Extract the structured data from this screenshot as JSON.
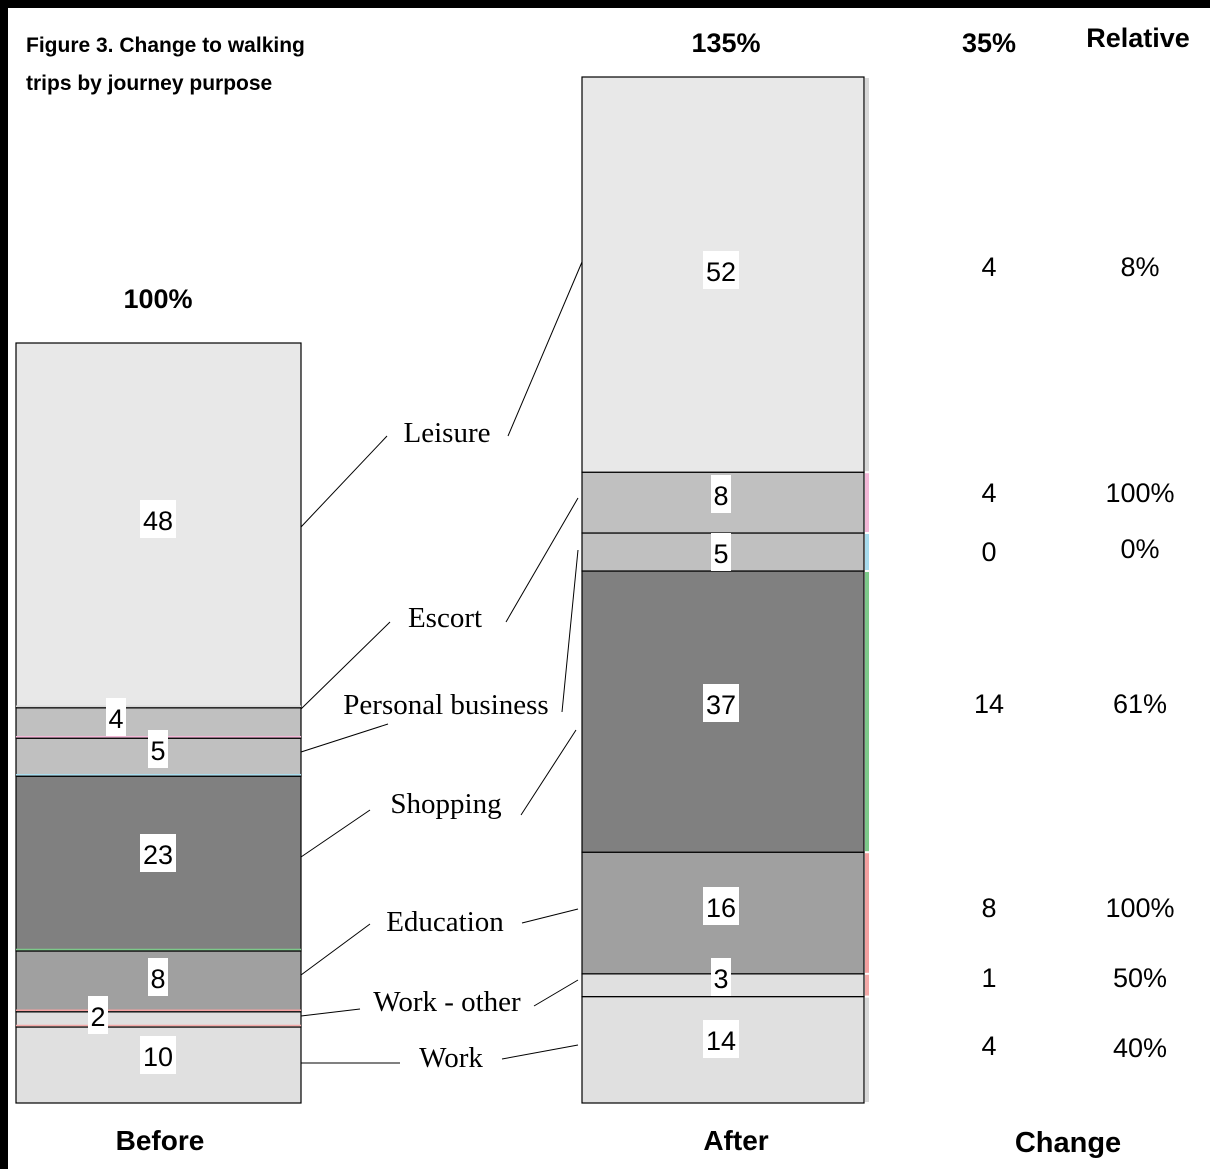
{
  "chart_data": {
    "type": "bar",
    "stacked": true,
    "title": "Figure 3. Change to walking trips by journey purpose",
    "categories": [
      "Before",
      "After"
    ],
    "category_totals": [
      "100%",
      "135%"
    ],
    "series": [
      {
        "name": "Work",
        "values": [
          10,
          14
        ],
        "fill": "#e0e0e0",
        "accent": "#d8d8d8",
        "change": "4",
        "relative": "40%"
      },
      {
        "name": "Work - other",
        "values": [
          2,
          3
        ],
        "fill": "#e0e0e0",
        "accent": "#f4a9a8",
        "change": "1",
        "relative": "50%"
      },
      {
        "name": "Education",
        "values": [
          8,
          16
        ],
        "fill": "#a0a0a0",
        "accent": "#f4a0a0",
        "change": "8",
        "relative": "100%"
      },
      {
        "name": "Shopping",
        "values": [
          23,
          37
        ],
        "fill": "#808080",
        "accent": "#7dc98a",
        "change": "14",
        "relative": "61%"
      },
      {
        "name": "Personal business",
        "values": [
          5,
          5
        ],
        "fill": "#c0c0c0",
        "accent": "#a8dcee",
        "change": "0",
        "relative": "0%"
      },
      {
        "name": "Escort",
        "values": [
          4,
          8
        ],
        "fill": "#c0c0c0",
        "accent": "#f4b8d8",
        "change": "4",
        "relative": "100%"
      },
      {
        "name": "Leisure",
        "values": [
          48,
          52
        ],
        "fill": "#e8e8e8",
        "accent": "#d8d8d8",
        "change": "4",
        "relative": "8%"
      }
    ],
    "change_column": {
      "total": "35%",
      "header": "Change"
    },
    "relative_column": {
      "header": "Relative"
    },
    "legend": "labels-between-bars"
  }
}
